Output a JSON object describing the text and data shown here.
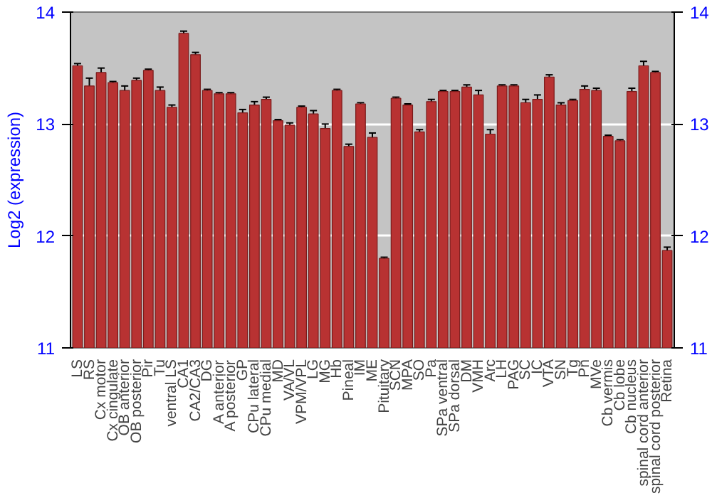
{
  "chart_data": {
    "type": "bar",
    "ylabel": "Log2 (expression)",
    "categories": [
      "LS",
      "RS",
      "Cx motor",
      "Cx cingulate",
      "OB anterior",
      "OB posterior",
      "Pir",
      "Tu",
      "ventral LS",
      "CA1",
      "CA2/CA3",
      "DG",
      "A anterior",
      "A posterior",
      "GP",
      "CPu lateral",
      "CPu medial",
      "MD",
      "VA/VL",
      "VPM/VPL",
      "LG",
      "MG",
      "Hb",
      "Pineal",
      "IM",
      "ME",
      "Pituitary",
      "SCN",
      "MPA",
      "SO",
      "Pa",
      "SPa ventral",
      "SPa dorsal",
      "DM",
      "VMH",
      "Arc",
      "LH",
      "PAG",
      "SC",
      "IC",
      "VTA",
      "SN",
      "Tg",
      "Pn",
      "MVe",
      "Cb vermis",
      "Cb lobe",
      "Cb nucleus",
      "spinal cord anterior",
      "spinal cord posterior",
      "Retina"
    ],
    "values": [
      13.52,
      13.34,
      13.46,
      13.37,
      13.3,
      13.39,
      13.48,
      13.3,
      13.15,
      13.81,
      13.62,
      13.3,
      13.27,
      13.27,
      13.1,
      13.17,
      13.22,
      13.03,
      12.99,
      13.15,
      13.09,
      12.96,
      13.3,
      12.8,
      13.18,
      12.88,
      11.8,
      13.23,
      13.17,
      12.93,
      13.2,
      13.29,
      13.29,
      13.33,
      13.26,
      12.91,
      13.34,
      13.34,
      13.19,
      13.22,
      13.42,
      13.17,
      13.21,
      13.31,
      13.3,
      12.89,
      12.85,
      13.29,
      13.52,
      13.46,
      11.87
    ],
    "errors": [
      0.02,
      0.07,
      0.04,
      0.01,
      0.04,
      0.02,
      0.01,
      0.03,
      0.02,
      0.02,
      0.02,
      0.01,
      0.01,
      0.01,
      0.03,
      0.03,
      0.02,
      0.01,
      0.02,
      0.01,
      0.03,
      0.04,
      0.01,
      0.02,
      0.01,
      0.04,
      0.01,
      0.01,
      0.01,
      0.02,
      0.02,
      0.01,
      0.01,
      0.02,
      0.04,
      0.04,
      0.01,
      0.01,
      0.03,
      0.04,
      0.02,
      0.02,
      0.01,
      0.03,
      0.02,
      0.01,
      0.01,
      0.03,
      0.04,
      0.01,
      0.03
    ],
    "color": "#b83232",
    "ylim": [
      11,
      14
    ],
    "yticks": [
      11,
      12,
      13,
      14
    ],
    "y2lim": [
      11,
      14
    ],
    "y2ticks": [
      11,
      12,
      13,
      14
    ],
    "grid": "y"
  }
}
